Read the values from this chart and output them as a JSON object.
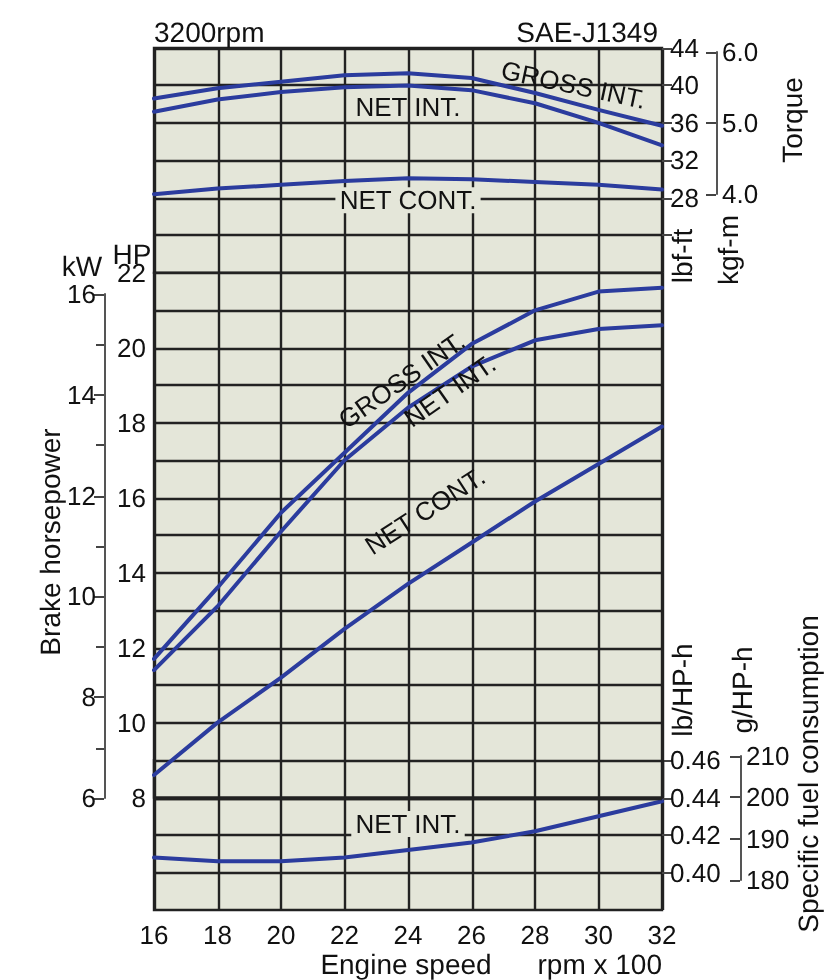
{
  "chart_data": [
    {
      "type": "line",
      "ylabel": "lbf-ft",
      "y2label": "kgf-m",
      "annotations": [
        "3200rpm",
        "SAE-J1349",
        "Torque"
      ],
      "x": [
        16,
        18,
        20,
        22,
        24,
        26,
        28,
        30,
        32
      ],
      "xlim": [
        16,
        32
      ],
      "xticks": [
        16,
        18,
        20,
        22,
        24,
        26,
        28,
        30,
        32
      ],
      "ylim": [
        20,
        44
      ],
      "yticks": [
        {
          "value": 24,
          "label": null
        },
        28,
        32,
        36,
        40,
        44
      ],
      "y2lim": [
        4,
        6
      ],
      "y2ticks": [
        {
          "value": 4,
          "label": "4.0"
        },
        {
          "value": 5,
          "label": "5.0"
        },
        {
          "value": 6,
          "label": "6.0"
        }
      ],
      "grid": true,
      "tick_labels": "y",
      "series": [
        {
          "name": "GROSS INT.",
          "color": "#2b3c9e",
          "values": [
            38.6,
            39.7,
            40.4,
            41.1,
            41.3,
            40.8,
            39.2,
            37.4,
            35.7
          ]
        },
        {
          "name": "NET INT.",
          "color": "#2b3c9e",
          "values": [
            37.2,
            38.5,
            39.3,
            39.8,
            40.0,
            39.5,
            38.1,
            36.0,
            33.6
          ]
        },
        {
          "name": "NET CONT.",
          "color": "#2b3c9e",
          "values": [
            28.4,
            29.0,
            29.4,
            29.8,
            30.1,
            30.0,
            29.7,
            29.4,
            28.9
          ]
        }
      ]
    },
    {
      "type": "line",
      "ylabel": "HP",
      "y2label": "kW",
      "annotations": [
        "Brake horsepower"
      ],
      "x": [
        16,
        18,
        20,
        22,
        24,
        26,
        28,
        30,
        32
      ],
      "xlim": [
        16,
        32
      ],
      "xticks": [
        16,
        18,
        20,
        22,
        24,
        26,
        28,
        30,
        32
      ],
      "ylim": [
        8,
        22
      ],
      "yticks": [
        8,
        {
          "value": 9,
          "label": null
        },
        10,
        {
          "value": 11,
          "label": null
        },
        12,
        {
          "value": 13,
          "label": null
        },
        14,
        {
          "value": 15,
          "label": null
        },
        16,
        {
          "value": 17,
          "label": null
        },
        18,
        {
          "value": 19,
          "label": null
        },
        20,
        {
          "value": 21,
          "label": null
        },
        22
      ],
      "y2lim": [
        6,
        16
      ],
      "y2ticks": [
        6,
        8,
        10,
        12,
        14,
        16
      ],
      "grid": true,
      "tick_labels": "y",
      "series": [
        {
          "name": "GROSS INT.",
          "color": "#2b3c9e",
          "values": [
            11.7,
            13.6,
            15.6,
            17.2,
            18.8,
            20.1,
            21.0,
            21.5,
            21.6
          ]
        },
        {
          "name": "NET INT.",
          "color": "#2b3c9e",
          "values": [
            11.4,
            13.1,
            15.1,
            17.0,
            18.4,
            19.5,
            20.2,
            20.5,
            20.6
          ]
        },
        {
          "name": "NET CONT.",
          "color": "#2b3c9e",
          "values": [
            8.6,
            10.0,
            11.2,
            12.5,
            13.7,
            14.8,
            15.9,
            16.9,
            17.9
          ]
        }
      ]
    },
    {
      "type": "line",
      "xlabel": "Engine speed",
      "ylabel": "lb/HP-h",
      "y2label": "g/HP-h",
      "annotations": [
        "Specific fuel consumption",
        "rpm x 100"
      ],
      "x": [
        16,
        18,
        20,
        22,
        24,
        26,
        28,
        30,
        32
      ],
      "xlim": [
        16,
        32
      ],
      "xticks": [
        16,
        18,
        20,
        22,
        24,
        26,
        28,
        30,
        32
      ],
      "ylim": [
        0.38,
        0.46
      ],
      "yticks": [
        {
          "value": 0.4,
          "label": "0.40"
        },
        {
          "value": 0.42,
          "label": "0.42"
        },
        {
          "value": 0.44,
          "label": "0.44"
        },
        {
          "value": 0.46,
          "label": "0.46"
        }
      ],
      "y2lim": [
        180,
        210
      ],
      "y2ticks": [
        180,
        190,
        200,
        210
      ],
      "grid": true,
      "series": [
        {
          "name": "NET INT.",
          "color": "#2b3c9e",
          "values": [
            0.408,
            0.406,
            0.406,
            0.408,
            0.412,
            0.416,
            0.422,
            0.43,
            0.438
          ]
        }
      ]
    }
  ]
}
